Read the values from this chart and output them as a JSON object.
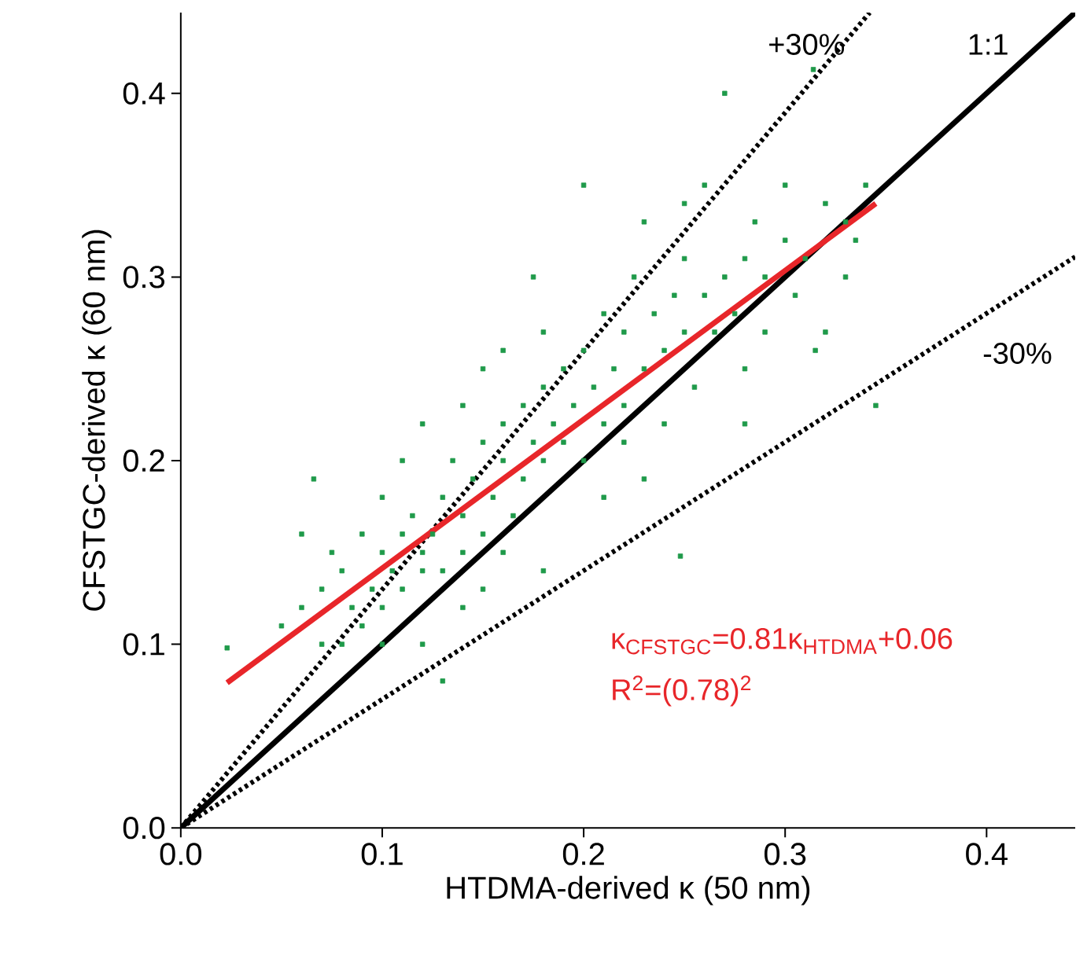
{
  "chart_data": {
    "type": "scatter",
    "xlabel": "HTDMA-derived κ (50 nm)",
    "ylabel": "CFSTGC-derived κ (60 nm)",
    "xlim": [
      0,
      0.444
    ],
    "ylim": [
      0,
      0.444
    ],
    "xticks": [
      {
        "value": 0,
        "label": "0.0"
      },
      {
        "value": 0.1,
        "label": "0.1"
      },
      {
        "value": 0.2,
        "label": "0.2"
      },
      {
        "value": 0.3,
        "label": "0.3"
      },
      {
        "value": 0.4,
        "label": "0.4"
      }
    ],
    "yticks": [
      {
        "value": 0,
        "label": "0.0"
      },
      {
        "value": 0.1,
        "label": "0.1"
      },
      {
        "value": 0.2,
        "label": "0.2"
      },
      {
        "value": 0.3,
        "label": "0.3"
      },
      {
        "value": 0.4,
        "label": "0.4"
      }
    ],
    "series": [
      {
        "marker": "square",
        "color": "#1f9a4a",
        "x": [
          0.023,
          0.05,
          0.06,
          0.07,
          0.07,
          0.075,
          0.08,
          0.08,
          0.085,
          0.09,
          0.09,
          0.095,
          0.1,
          0.1,
          0.1,
          0.105,
          0.11,
          0.11,
          0.11,
          0.115,
          0.12,
          0.12,
          0.12,
          0.125,
          0.13,
          0.13,
          0.13,
          0.135,
          0.14,
          0.14,
          0.14,
          0.145,
          0.15,
          0.15,
          0.15,
          0.155,
          0.16,
          0.16,
          0.16,
          0.165,
          0.17,
          0.17,
          0.175,
          0.175,
          0.18,
          0.18,
          0.18,
          0.185,
          0.19,
          0.19,
          0.195,
          0.2,
          0.2,
          0.2,
          0.205,
          0.21,
          0.21,
          0.215,
          0.22,
          0.22,
          0.22,
          0.225,
          0.23,
          0.23,
          0.235,
          0.24,
          0.24,
          0.245,
          0.25,
          0.25,
          0.255,
          0.26,
          0.26,
          0.265,
          0.27,
          0.27,
          0.275,
          0.28,
          0.28,
          0.285,
          0.29,
          0.29,
          0.3,
          0.3,
          0.305,
          0.314,
          0.31,
          0.32,
          0.33,
          0.335,
          0.34,
          0.345,
          0.248,
          0.25,
          0.18,
          0.21,
          0.06,
          0.066,
          0.12,
          0.14,
          0.1,
          0.15,
          0.16,
          0.23,
          0.28,
          0.315,
          0.32,
          0.33
        ],
        "values": [
          0.098,
          0.11,
          0.12,
          0.1,
          0.13,
          0.15,
          0.1,
          0.14,
          0.12,
          0.16,
          0.11,
          0.13,
          0.15,
          0.18,
          0.12,
          0.14,
          0.16,
          0.2,
          0.13,
          0.17,
          0.15,
          0.22,
          0.14,
          0.16,
          0.18,
          0.14,
          0.08,
          0.2,
          0.17,
          0.23,
          0.15,
          0.19,
          0.21,
          0.16,
          0.25,
          0.18,
          0.2,
          0.22,
          0.26,
          0.17,
          0.23,
          0.19,
          0.21,
          0.3,
          0.24,
          0.2,
          0.27,
          0.22,
          0.25,
          0.21,
          0.23,
          0.26,
          0.2,
          0.35,
          0.24,
          0.22,
          0.28,
          0.25,
          0.23,
          0.27,
          0.21,
          0.3,
          0.25,
          0.33,
          0.28,
          0.26,
          0.22,
          0.29,
          0.27,
          0.31,
          0.24,
          0.29,
          0.35,
          0.27,
          0.3,
          0.4,
          0.28,
          0.31,
          0.25,
          0.33,
          0.3,
          0.27,
          0.32,
          0.35,
          0.29,
          0.413,
          0.31,
          0.34,
          0.3,
          0.32,
          0.35,
          0.23,
          0.148,
          0.34,
          0.14,
          0.18,
          0.16,
          0.19,
          0.1,
          0.12,
          0.1,
          0.13,
          0.15,
          0.19,
          0.22,
          0.26,
          0.27,
          0.33
        ]
      },
      {
        "type": "line",
        "line_style": "dotted",
        "color": "#000000",
        "x": [
          0,
          0.342
        ],
        "values": [
          0,
          0.444
        ]
      },
      {
        "type": "line",
        "line_style": "dotted",
        "color": "#000000",
        "x": [
          0,
          0.444
        ],
        "values": [
          0,
          0.311
        ]
      },
      {
        "type": "line",
        "line_style": "solid",
        "color": "#000000",
        "x": [
          0,
          0.444
        ],
        "values": [
          0,
          0.444
        ]
      },
      {
        "type": "line",
        "line_style": "solid",
        "color": "#e8262a",
        "x": [
          0.023,
          0.345
        ],
        "values": [
          0.079,
          0.34
        ]
      }
    ],
    "annotations": [
      "+30%",
      "1:1",
      "-30%",
      "κ$_{CFSTGC}$=0.81κ$_{HTDMA}$+0.06",
      "R$^{2}$=(0.78)$^{2}$"
    ]
  }
}
